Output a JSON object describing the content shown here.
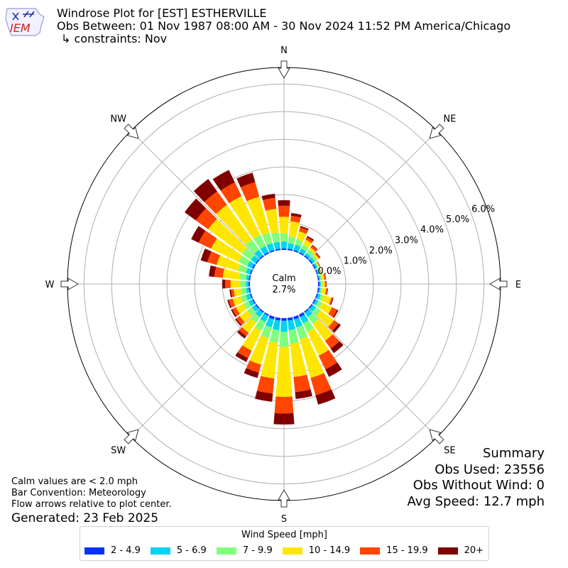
{
  "header": {
    "title": "Windrose Plot for [EST] ESTHERVILLE",
    "obs_between": "Obs Between: 01 Nov 1987 08:00 AM - 30 Nov 2024 11:52 PM America/Chicago",
    "constraints": "↳ constraints: Nov",
    "logo_text": "IEM"
  },
  "summary": {
    "title": "Summary",
    "obs_used": "Obs Used: 23556",
    "obs_without_wind": "Obs Without Wind: 0",
    "avg_speed": "Avg Speed: 12.7 mph"
  },
  "notes": {
    "calm_note": "Calm values are < 2.0 mph",
    "bar_convention": "Bar Convention: Meteorology",
    "flow_arrows": "Flow arrows relative to plot center.",
    "generated": "Generated: 23 Feb 2025"
  },
  "calm": {
    "label": "Calm",
    "value": "2.7%"
  },
  "legend": {
    "title": "Wind Speed [mph]",
    "items": [
      {
        "label": "2 - 4.9",
        "color": "#0a32ff"
      },
      {
        "label": "5 - 6.9",
        "color": "#00d4f0"
      },
      {
        "label": "7 - 9.9",
        "color": "#80ff7a"
      },
      {
        "label": "10 - 14.9",
        "color": "#ffe600"
      },
      {
        "label": "15 - 19.9",
        "color": "#ff4500"
      },
      {
        "label": "20+",
        "color": "#800000"
      }
    ]
  },
  "chart_data": {
    "type": "windrose",
    "direction_labels": [
      "N",
      "NE",
      "E",
      "SE",
      "S",
      "SW",
      "W",
      "NW"
    ],
    "radial_ticks": [
      "0.0%",
      "1.0%",
      "2.0%",
      "3.0%",
      "4.0%",
      "5.0%",
      "6.0%"
    ],
    "radial_tick_values": [
      0,
      1,
      2,
      3,
      4,
      5,
      6
    ],
    "rmax": 6.6,
    "calm_percent": 2.7,
    "bins": [
      "2 - 4.9",
      "5 - 6.9",
      "7 - 9.9",
      "10 - 14.9",
      "15 - 19.9",
      "20+"
    ],
    "sectors": [
      {
        "dir": 0,
        "values": [
          0.05,
          0.25,
          0.3,
          0.6,
          0.4,
          0.2
        ]
      },
      {
        "dir": 10,
        "values": [
          0.05,
          0.2,
          0.25,
          0.55,
          0.2,
          0.1
        ]
      },
      {
        "dir": 20,
        "values": [
          0.05,
          0.2,
          0.2,
          0.3,
          0.15,
          0.05
        ]
      },
      {
        "dir": 30,
        "values": [
          0.05,
          0.15,
          0.15,
          0.2,
          0.1,
          0.05
        ]
      },
      {
        "dir": 40,
        "values": [
          0.05,
          0.1,
          0.15,
          0.1,
          0.1,
          0.02
        ]
      },
      {
        "dir": 50,
        "values": [
          0.05,
          0.1,
          0.1,
          0.08,
          0.05,
          0.02
        ]
      },
      {
        "dir": 60,
        "values": [
          0.05,
          0.07,
          0.05,
          0.03,
          0.02,
          0.01
        ]
      },
      {
        "dir": 70,
        "values": [
          0.04,
          0.05,
          0.05,
          0.02,
          0.01,
          0.01
        ]
      },
      {
        "dir": 80,
        "values": [
          0.04,
          0.05,
          0.05,
          0.1,
          0.05,
          0.01
        ]
      },
      {
        "dir": 90,
        "values": [
          0.05,
          0.05,
          0.05,
          0.1,
          0.05,
          0.01
        ]
      },
      {
        "dir": 100,
        "values": [
          0.05,
          0.05,
          0.05,
          0.15,
          0.05,
          0.02
        ]
      },
      {
        "dir": 110,
        "values": [
          0.05,
          0.1,
          0.1,
          0.3,
          0.05,
          0.03
        ]
      },
      {
        "dir": 120,
        "values": [
          0.05,
          0.1,
          0.15,
          0.4,
          0.2,
          0.05
        ]
      },
      {
        "dir": 130,
        "values": [
          0.05,
          0.15,
          0.2,
          0.6,
          0.2,
          0.1
        ]
      },
      {
        "dir": 140,
        "values": [
          0.05,
          0.2,
          0.3,
          0.75,
          0.35,
          0.2
        ]
      },
      {
        "dir": 150,
        "values": [
          0.1,
          0.25,
          0.35,
          0.95,
          0.55,
          0.3
        ]
      },
      {
        "dir": 160,
        "values": [
          0.1,
          0.3,
          0.45,
          1.45,
          0.65,
          0.35
        ]
      },
      {
        "dir": 170,
        "values": [
          0.1,
          0.35,
          0.5,
          1.2,
          0.55,
          0.25
        ]
      },
      {
        "dir": 180,
        "values": [
          0.1,
          0.4,
          0.55,
          1.8,
          0.6,
          0.4
        ]
      },
      {
        "dir": 190,
        "values": [
          0.1,
          0.35,
          0.45,
          1.3,
          0.55,
          0.3
        ]
      },
      {
        "dir": 200,
        "values": [
          0.1,
          0.3,
          0.4,
          1.0,
          0.3,
          0.2
        ]
      },
      {
        "dir": 210,
        "values": [
          0.05,
          0.25,
          0.35,
          0.8,
          0.3,
          0.15
        ]
      },
      {
        "dir": 220,
        "values": [
          0.05,
          0.2,
          0.25,
          0.45,
          0.15,
          0.1
        ]
      },
      {
        "dir": 230,
        "values": [
          0.05,
          0.15,
          0.2,
          0.35,
          0.15,
          0.05
        ]
      },
      {
        "dir": 240,
        "values": [
          0.05,
          0.15,
          0.2,
          0.3,
          0.15,
          0.05
        ]
      },
      {
        "dir": 250,
        "values": [
          0.05,
          0.15,
          0.2,
          0.3,
          0.15,
          0.05
        ]
      },
      {
        "dir": 260,
        "values": [
          0.05,
          0.1,
          0.2,
          0.25,
          0.1,
          0.05
        ]
      },
      {
        "dir": 270,
        "values": [
          0.05,
          0.1,
          0.2,
          0.35,
          0.2,
          0.1
        ]
      },
      {
        "dir": 280,
        "values": [
          0.05,
          0.1,
          0.25,
          0.6,
          0.3,
          0.2
        ]
      },
      {
        "dir": 290,
        "values": [
          0.05,
          0.15,
          0.3,
          0.8,
          0.35,
          0.25
        ]
      },
      {
        "dir": 300,
        "values": [
          0.05,
          0.2,
          0.35,
          1.1,
          0.5,
          0.3
        ]
      },
      {
        "dir": 310,
        "values": [
          0.05,
          0.2,
          0.4,
          1.5,
          0.55,
          0.5
        ]
      },
      {
        "dir": 320,
        "values": [
          0.05,
          0.25,
          0.45,
          1.55,
          0.6,
          0.55
        ]
      },
      {
        "dir": 330,
        "values": [
          0.05,
          0.25,
          0.45,
          1.55,
          0.55,
          0.5
        ]
      },
      {
        "dir": 340,
        "values": [
          0.05,
          0.25,
          0.4,
          1.35,
          0.55,
          0.35
        ]
      },
      {
        "dir": 350,
        "values": [
          0.05,
          0.25,
          0.35,
          0.85,
          0.4,
          0.15
        ]
      }
    ]
  }
}
